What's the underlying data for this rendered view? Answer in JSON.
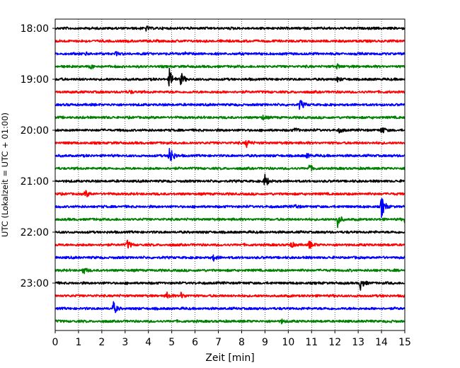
{
  "chart_data": {
    "type": "line",
    "title": "",
    "xlabel": "Zeit  [min]",
    "ylabel": "UTC (Lokalzeit = UTC + 01:00)",
    "xlim": [
      0,
      15
    ],
    "x_ticks": [
      "0",
      "1",
      "2",
      "3",
      "4",
      "5",
      "6",
      "7",
      "8",
      "9",
      "10",
      "11",
      "12",
      "13",
      "14",
      "15"
    ],
    "y_ticks": [
      "18:00",
      "19:00",
      "20:00",
      "21:00",
      "22:00",
      "23:00"
    ],
    "trace_interval_minutes": 15,
    "grid": "vertical dotted at each minute",
    "trace_colors": [
      "#000000",
      "#ff0000",
      "#0000ff",
      "#008000"
    ],
    "traces": [
      {
        "start": "18:00",
        "color": "#000000",
        "events": [
          {
            "t": 3.9,
            "a": 3
          }
        ]
      },
      {
        "start": "18:15",
        "color": "#ff0000",
        "events": []
      },
      {
        "start": "18:30",
        "color": "#0000ff",
        "events": [
          {
            "t": 1.3,
            "a": 2
          },
          {
            "t": 2.6,
            "a": 2
          },
          {
            "t": 5.6,
            "a": 2
          }
        ]
      },
      {
        "start": "18:45",
        "color": "#008000",
        "events": [
          {
            "t": 1.5,
            "a": 3
          },
          {
            "t": 12.1,
            "a": 3
          }
        ]
      },
      {
        "start": "19:00",
        "color": "#000000",
        "events": [
          {
            "t": 4.9,
            "a": 14
          },
          {
            "t": 5.4,
            "a": 9
          },
          {
            "t": 12.1,
            "a": 3
          }
        ]
      },
      {
        "start": "19:15",
        "color": "#ff0000",
        "events": [
          {
            "t": 3.2,
            "a": 2
          }
        ]
      },
      {
        "start": "19:30",
        "color": "#0000ff",
        "events": [
          {
            "t": 10.5,
            "a": 8
          }
        ]
      },
      {
        "start": "19:45",
        "color": "#008000",
        "events": [
          {
            "t": 8.9,
            "a": 3
          }
        ]
      },
      {
        "start": "20:00",
        "color": "#000000",
        "events": [
          {
            "t": 10.3,
            "a": 3
          },
          {
            "t": 12.2,
            "a": 3
          },
          {
            "t": 14.0,
            "a": 5
          }
        ]
      },
      {
        "start": "20:15",
        "color": "#ff0000",
        "events": [
          {
            "t": 8.2,
            "a": 6
          }
        ]
      },
      {
        "start": "20:30",
        "color": "#0000ff",
        "events": [
          {
            "t": 4.9,
            "a": 18
          },
          {
            "t": 10.8,
            "a": 3
          }
        ]
      },
      {
        "start": "20:45",
        "color": "#008000",
        "events": [
          {
            "t": 10.9,
            "a": 5
          }
        ]
      },
      {
        "start": "21:00",
        "color": "#000000",
        "events": [
          {
            "t": 9.0,
            "a": 10
          }
        ]
      },
      {
        "start": "21:15",
        "color": "#ff0000",
        "events": [
          {
            "t": 1.3,
            "a": 5
          }
        ]
      },
      {
        "start": "21:30",
        "color": "#0000ff",
        "events": [
          {
            "t": 10.3,
            "a": 3
          },
          {
            "t": 14.0,
            "a": 16
          }
        ]
      },
      {
        "start": "21:45",
        "color": "#008000",
        "events": [
          {
            "t": 12.1,
            "a": 12
          },
          {
            "t": 15.0,
            "a": 4
          }
        ]
      },
      {
        "start": "22:00",
        "color": "#000000",
        "events": []
      },
      {
        "start": "22:15",
        "color": "#ff0000",
        "events": [
          {
            "t": 3.1,
            "a": 6
          },
          {
            "t": 10.1,
            "a": 4
          },
          {
            "t": 10.9,
            "a": 6
          }
        ]
      },
      {
        "start": "22:30",
        "color": "#0000ff",
        "events": [
          {
            "t": 6.8,
            "a": 4
          }
        ]
      },
      {
        "start": "22:45",
        "color": "#008000",
        "events": [
          {
            "t": 1.2,
            "a": 5
          }
        ]
      },
      {
        "start": "23:00",
        "color": "#000000",
        "events": [
          {
            "t": 13.1,
            "a": 9
          }
        ]
      },
      {
        "start": "23:15",
        "color": "#ff0000",
        "events": [
          {
            "t": 4.8,
            "a": 4
          },
          {
            "t": 5.4,
            "a": 4
          }
        ]
      },
      {
        "start": "23:30",
        "color": "#0000ff",
        "events": [
          {
            "t": 2.5,
            "a": 9
          }
        ]
      },
      {
        "start": "23:45",
        "color": "#008000",
        "events": [
          {
            "t": 9.7,
            "a": 3
          }
        ]
      }
    ]
  }
}
